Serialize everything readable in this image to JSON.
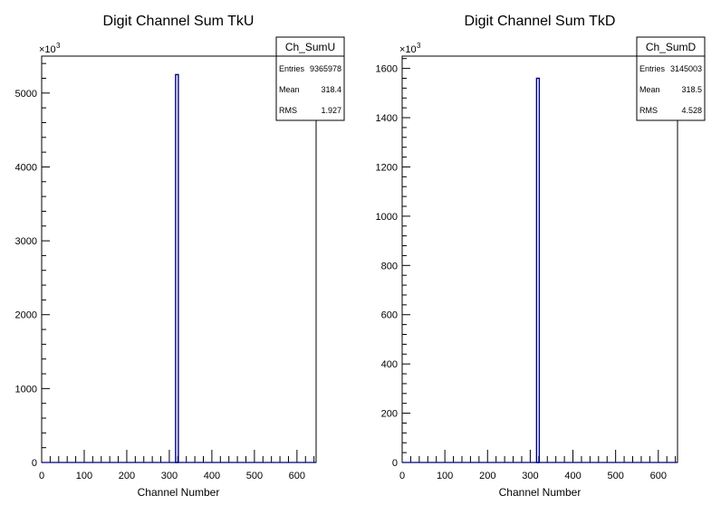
{
  "chart_data": [
    {
      "type": "bar",
      "title": "Digit Channel Sum TkU",
      "xlabel": "Channel Number",
      "ylabel": "",
      "exponent": "×10",
      "exponent_power": "3",
      "xlim": [
        0,
        645
      ],
      "ylim": [
        0,
        5500
      ],
      "x_ticks": [
        "0",
        "100",
        "200",
        "300",
        "400",
        "500",
        "600"
      ],
      "y_ticks": [
        "0",
        "1000",
        "2000",
        "3000",
        "4000",
        "5000"
      ],
      "peak": {
        "x": 318,
        "value": 5250
      },
      "color": "#000080",
      "stats": {
        "name": "Ch_SumU",
        "rows": [
          {
            "label": "Entries",
            "value": "9365978"
          },
          {
            "label": "Mean",
            "value": "318.4"
          },
          {
            "label": "RMS",
            "value": "1.927"
          }
        ]
      }
    },
    {
      "type": "bar",
      "title": "Digit Channel Sum TkD",
      "xlabel": "Channel Number",
      "ylabel": "",
      "exponent": "×10",
      "exponent_power": "3",
      "xlim": [
        0,
        645
      ],
      "ylim": [
        0,
        1650
      ],
      "x_ticks": [
        "0",
        "100",
        "200",
        "300",
        "400",
        "500",
        "600"
      ],
      "y_ticks": [
        "0",
        "200",
        "400",
        "600",
        "800",
        "1000",
        "1200",
        "1400",
        "1600"
      ],
      "peak": {
        "x": 318,
        "value": 1560
      },
      "color": "#000080",
      "stats": {
        "name": "Ch_SumD",
        "rows": [
          {
            "label": "Entries",
            "value": "3145003"
          },
          {
            "label": "Mean",
            "value": "318.5"
          },
          {
            "label": "RMS",
            "value": "4.528"
          }
        ]
      }
    }
  ]
}
